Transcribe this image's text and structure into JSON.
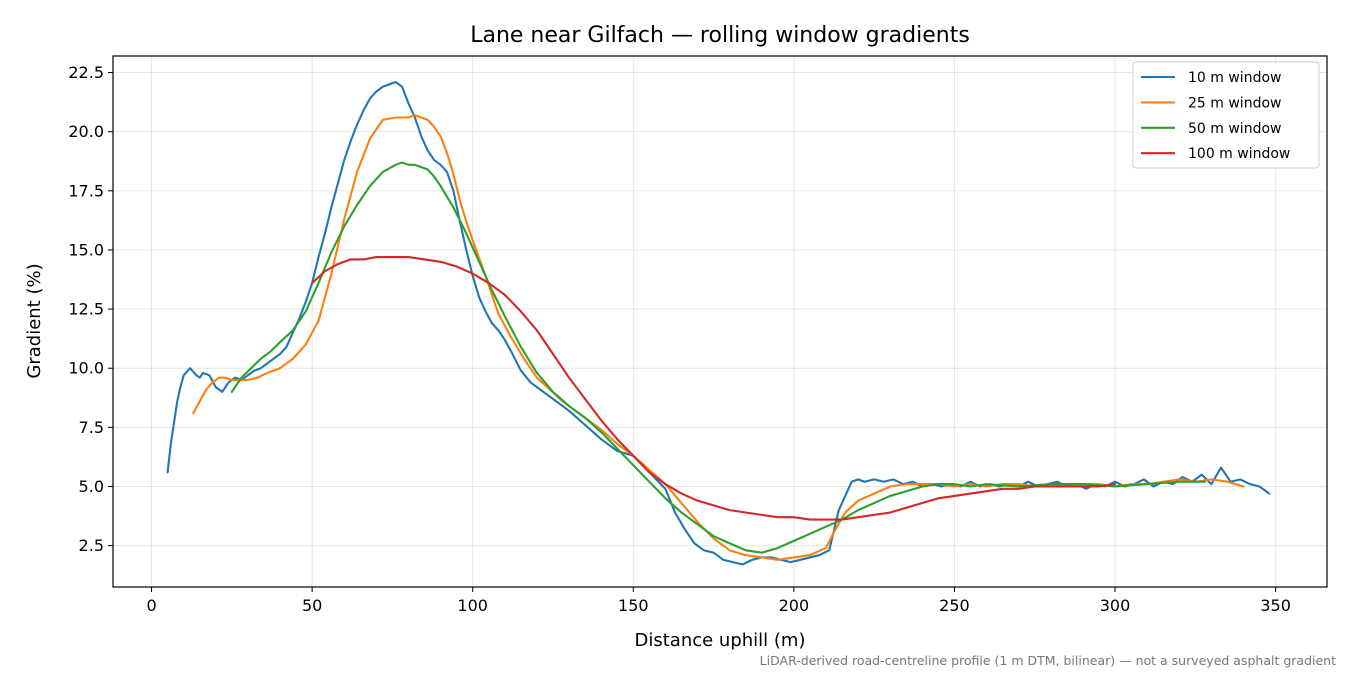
{
  "chart_data": {
    "type": "line",
    "title": "Lane near Gilfach — rolling window gradients",
    "xlabel": "Distance uphill (m)",
    "ylabel": "Gradient (%)",
    "footnote": "LiDAR-derived road-centreline profile (1 m DTM, bilinear) — not a surveyed asphalt gradient",
    "xlim": [
      -12,
      366
    ],
    "ylim": [
      0.75,
      23.2
    ],
    "xticks": [
      0,
      50,
      100,
      150,
      200,
      250,
      300,
      350
    ],
    "yticks": [
      2.5,
      5.0,
      7.5,
      10.0,
      12.5,
      15.0,
      17.5,
      20.0,
      22.5
    ],
    "xtick_labels": [
      "0",
      "50",
      "100",
      "150",
      "200",
      "250",
      "300",
      "350"
    ],
    "ytick_labels": [
      "2.5",
      "5.0",
      "7.5",
      "10.0",
      "12.5",
      "15.0",
      "17.5",
      "20.0",
      "22.5"
    ],
    "grid": true,
    "legend_position": "top-right",
    "series": [
      {
        "name": "10 m window",
        "color": "#1f77b4",
        "x": [
          5,
          6,
          8,
          9,
          10,
          12,
          14,
          15,
          16,
          18,
          20,
          22,
          24,
          26,
          28,
          30,
          32,
          34,
          36,
          38,
          40,
          42,
          44,
          46,
          48,
          50,
          52,
          54,
          56,
          58,
          60,
          62,
          64,
          66,
          68,
          70,
          72,
          74,
          76,
          78,
          80,
          82,
          83,
          84,
          86,
          88,
          90,
          92,
          94,
          96,
          98,
          100,
          102,
          104,
          106,
          108,
          110,
          112,
          115,
          118,
          120,
          122,
          125,
          128,
          130,
          135,
          140,
          145,
          150,
          155,
          160,
          163,
          166,
          169,
          172,
          175,
          178,
          181,
          184,
          187,
          190,
          193,
          196,
          199,
          202,
          205,
          208,
          211,
          214,
          216,
          218,
          220,
          222,
          225,
          228,
          231,
          234,
          237,
          240,
          243,
          246,
          249,
          252,
          255,
          258,
          261,
          264,
          267,
          270,
          273,
          276,
          279,
          282,
          285,
          288,
          291,
          294,
          297,
          300,
          303,
          306,
          309,
          312,
          315,
          318,
          321,
          324,
          327,
          330,
          333,
          336,
          339,
          342,
          345,
          348
        ],
        "y": [
          5.6,
          6.8,
          8.6,
          9.2,
          9.7,
          10.0,
          9.7,
          9.6,
          9.8,
          9.7,
          9.2,
          9.0,
          9.4,
          9.6,
          9.5,
          9.7,
          9.9,
          10.0,
          10.2,
          10.4,
          10.6,
          10.9,
          11.5,
          12.1,
          12.8,
          13.6,
          14.7,
          15.7,
          16.8,
          17.8,
          18.8,
          19.6,
          20.3,
          20.9,
          21.4,
          21.7,
          21.9,
          22.0,
          22.1,
          21.9,
          21.2,
          20.6,
          20.2,
          19.8,
          19.2,
          18.8,
          18.6,
          18.3,
          17.5,
          16.2,
          15.0,
          13.9,
          13.0,
          12.4,
          11.9,
          11.6,
          11.2,
          10.7,
          9.9,
          9.4,
          9.2,
          9.0,
          8.7,
          8.4,
          8.2,
          7.6,
          7.0,
          6.5,
          6.3,
          5.6,
          4.9,
          3.9,
          3.2,
          2.6,
          2.3,
          2.2,
          1.9,
          1.8,
          1.7,
          1.9,
          2.0,
          2.0,
          1.9,
          1.8,
          1.9,
          2.0,
          2.1,
          2.3,
          4.0,
          4.6,
          5.2,
          5.3,
          5.2,
          5.3,
          5.2,
          5.3,
          5.1,
          5.2,
          5.0,
          5.1,
          5.0,
          5.1,
          5.0,
          5.2,
          5.0,
          5.1,
          5.0,
          5.1,
          5.0,
          5.2,
          5.0,
          5.1,
          5.2,
          5.0,
          5.1,
          4.9,
          5.1,
          5.0,
          5.2,
          5.0,
          5.1,
          5.3,
          5.0,
          5.2,
          5.1,
          5.4,
          5.2,
          5.5,
          5.1,
          5.8,
          5.2,
          5.3,
          5.1,
          5.0,
          4.7
        ]
      },
      {
        "name": "25 m window",
        "color": "#ff7f0e",
        "x": [
          13,
          15,
          17,
          19,
          21,
          23,
          25,
          27,
          30,
          33,
          36,
          40,
          44,
          48,
          52,
          56,
          60,
          64,
          68,
          72,
          76,
          80,
          82,
          84,
          86,
          88,
          90,
          92,
          94,
          96,
          98,
          100,
          104,
          108,
          112,
          116,
          120,
          124,
          128,
          132,
          136,
          140,
          145,
          150,
          155,
          160,
          165,
          170,
          175,
          180,
          185,
          190,
          195,
          200,
          205,
          210,
          213,
          216,
          220,
          225,
          230,
          235,
          240,
          245,
          250,
          255,
          260,
          265,
          270,
          275,
          280,
          285,
          290,
          295,
          300,
          305,
          310,
          315,
          320,
          325,
          330,
          335,
          340
        ],
        "y": [
          8.1,
          8.6,
          9.1,
          9.4,
          9.6,
          9.6,
          9.5,
          9.5,
          9.5,
          9.6,
          9.8,
          10.0,
          10.4,
          11.0,
          12.0,
          14.0,
          16.3,
          18.3,
          19.7,
          20.5,
          20.6,
          20.6,
          20.7,
          20.6,
          20.5,
          20.2,
          19.8,
          19.1,
          18.2,
          17.1,
          16.2,
          15.4,
          13.9,
          12.3,
          11.3,
          10.4,
          9.6,
          9.1,
          8.6,
          8.2,
          7.8,
          7.4,
          6.8,
          6.3,
          5.7,
          5.1,
          4.3,
          3.5,
          2.8,
          2.3,
          2.1,
          2.0,
          1.9,
          2.0,
          2.1,
          2.4,
          3.2,
          3.9,
          4.4,
          4.7,
          5.0,
          5.1,
          5.1,
          5.1,
          5.0,
          5.1,
          5.0,
          5.1,
          5.1,
          5.0,
          5.1,
          5.0,
          5.1,
          5.1,
          5.0,
          5.1,
          5.1,
          5.2,
          5.3,
          5.2,
          5.3,
          5.2,
          5.0
        ]
      },
      {
        "name": "50 m window",
        "color": "#2ca02c",
        "x": [
          25,
          28,
          31,
          34,
          37,
          40,
          44,
          48,
          52,
          56,
          60,
          64,
          68,
          72,
          76,
          78,
          80,
          82,
          84,
          86,
          88,
          90,
          94,
          98,
          102,
          106,
          110,
          115,
          120,
          125,
          130,
          135,
          140,
          145,
          150,
          155,
          160,
          165,
          170,
          175,
          180,
          185,
          190,
          195,
          200,
          205,
          210,
          215,
          220,
          225,
          230,
          235,
          240,
          245,
          250,
          255,
          260,
          270,
          280,
          290,
          300,
          310,
          320,
          328
        ],
        "y": [
          9.0,
          9.6,
          10.0,
          10.4,
          10.7,
          11.1,
          11.6,
          12.4,
          13.6,
          14.9,
          16.0,
          16.9,
          17.7,
          18.3,
          18.6,
          18.7,
          18.6,
          18.6,
          18.5,
          18.4,
          18.1,
          17.7,
          16.8,
          15.7,
          14.5,
          13.3,
          12.2,
          10.9,
          9.8,
          9.0,
          8.4,
          7.9,
          7.3,
          6.6,
          5.9,
          5.2,
          4.5,
          3.9,
          3.4,
          2.9,
          2.6,
          2.3,
          2.2,
          2.4,
          2.7,
          3.0,
          3.3,
          3.6,
          4.0,
          4.3,
          4.6,
          4.8,
          5.0,
          5.1,
          5.1,
          5.0,
          5.1,
          5.0,
          5.1,
          5.1,
          5.0,
          5.1,
          5.2,
          5.2
        ]
      },
      {
        "name": "100 m window",
        "color": "#d62728",
        "x": [
          50,
          54,
          58,
          62,
          66,
          70,
          75,
          80,
          85,
          90,
          95,
          100,
          105,
          110,
          115,
          120,
          125,
          130,
          135,
          140,
          145,
          150,
          155,
          160,
          165,
          170,
          175,
          180,
          185,
          190,
          195,
          200,
          205,
          210,
          215,
          220,
          225,
          230,
          235,
          240,
          245,
          250,
          255,
          260,
          265,
          270,
          275,
          280,
          285,
          290,
          295,
          300
        ],
        "y": [
          13.6,
          14.1,
          14.4,
          14.6,
          14.6,
          14.7,
          14.7,
          14.7,
          14.6,
          14.5,
          14.3,
          14.0,
          13.6,
          13.1,
          12.4,
          11.6,
          10.6,
          9.6,
          8.7,
          7.8,
          7.0,
          6.3,
          5.6,
          5.1,
          4.7,
          4.4,
          4.2,
          4.0,
          3.9,
          3.8,
          3.7,
          3.7,
          3.6,
          3.6,
          3.6,
          3.7,
          3.8,
          3.9,
          4.1,
          4.3,
          4.5,
          4.6,
          4.7,
          4.8,
          4.9,
          4.9,
          5.0,
          5.0,
          5.0,
          5.0,
          5.0,
          5.1
        ]
      }
    ]
  }
}
